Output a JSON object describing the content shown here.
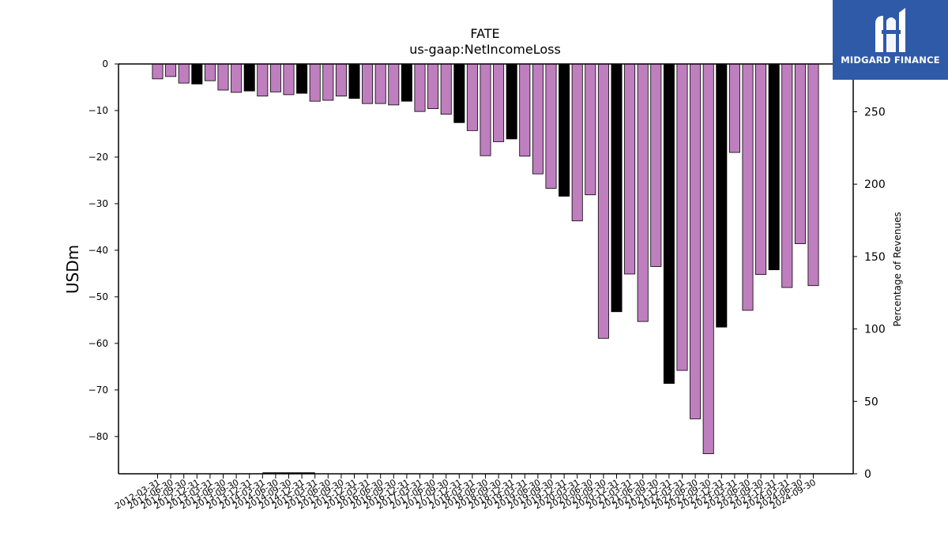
{
  "brand": {
    "name": "MIDGARD FINANCE",
    "color": "#2f5aa8"
  },
  "chart_data": {
    "type": "bar",
    "title": "FATE",
    "subtitle": "us-gaap:NetIncomeLoss",
    "ylabel": "USDm",
    "y2label": "Percentage of Revenues",
    "ylim": [
      -88,
      0
    ],
    "yticks": [
      0,
      -10,
      -20,
      -30,
      -40,
      -50,
      -60,
      -70,
      -80
    ],
    "y2lim": [
      0,
      283
    ],
    "y2ticks": [
      0,
      50,
      100,
      150,
      200,
      250
    ],
    "colors": {
      "quarter": "#bf7fbf",
      "year_end": "#000000"
    },
    "categories": [
      "2012-03-31",
      "2012-06-30",
      "2012-09-30",
      "2012-12-31",
      "2013-03-31",
      "2013-06-30",
      "2013-09-30",
      "2013-12-31",
      "2014-03-31",
      "2014-06-30",
      "2014-09-30",
      "2014-12-31",
      "2015-03-31",
      "2015-06-30",
      "2015-09-30",
      "2015-12-31",
      "2016-03-31",
      "2016-06-30",
      "2016-09-30",
      "2016-12-31",
      "2017-03-31",
      "2017-06-30",
      "2017-09-30",
      "2017-12-31",
      "2018-03-31",
      "2018-06-30",
      "2018-09-30",
      "2018-12-31",
      "2019-03-31",
      "2019-06-30",
      "2019-09-30",
      "2019-12-31",
      "2020-03-31",
      "2020-06-30",
      "2020-09-30",
      "2020-12-31",
      "2021-03-31",
      "2021-06-30",
      "2021-09-30",
      "2021-12-31",
      "2022-03-31",
      "2022-06-30",
      "2022-09-30",
      "2022-12-31",
      "2023-03-31",
      "2023-06-30",
      "2023-09-30",
      "2023-12-31",
      "2024-03-31",
      "2024-06-30",
      "2024-09-30"
    ],
    "values": [
      -3.2,
      -2.7,
      -4.1,
      -4.3,
      -3.6,
      -5.6,
      -6.1,
      -5.8,
      -6.9,
      -6.0,
      -6.6,
      -6.3,
      -8.0,
      -7.8,
      -6.9,
      -7.4,
      -8.5,
      -8.5,
      -8.8,
      -8.0,
      -10.2,
      -9.6,
      -10.8,
      -12.6,
      -14.3,
      -19.7,
      -16.7,
      -16.1,
      -19.8,
      -23.6,
      -26.7,
      -28.4,
      -33.7,
      -28.1,
      -58.9,
      -53.2,
      -45.1,
      -55.3,
      -43.5,
      -68.6,
      -65.8,
      -76.2,
      -83.7,
      -56.5,
      -19.0,
      -52.9,
      -45.2,
      -44.2,
      -48.0,
      -38.6,
      -47.6
    ],
    "year_end": [
      false,
      false,
      false,
      true,
      false,
      false,
      false,
      true,
      false,
      false,
      false,
      true,
      false,
      false,
      false,
      true,
      false,
      false,
      false,
      true,
      false,
      false,
      false,
      true,
      false,
      false,
      false,
      true,
      false,
      false,
      false,
      true,
      false,
      false,
      false,
      true,
      false,
      false,
      false,
      true,
      false,
      false,
      false,
      true,
      false,
      false,
      false,
      true,
      false,
      false,
      false
    ],
    "series_pct": {
      "name": "Percentage of Revenues",
      "x_start": "2014-03-31",
      "x_end": "2015-03-31",
      "value": 0
    }
  }
}
